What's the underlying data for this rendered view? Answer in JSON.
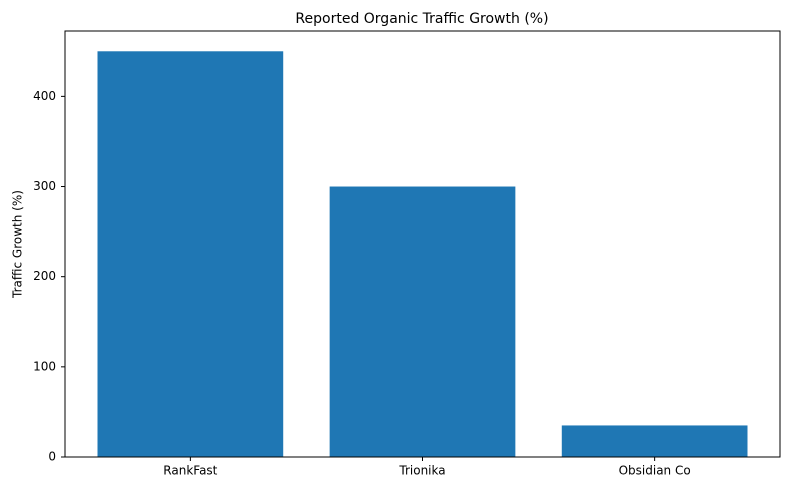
{
  "chart_data": {
    "type": "bar",
    "title": "Reported Organic Traffic Growth (%)",
    "y_label": "Traffic Growth (%)",
    "categories": [
      "RankFast",
      "Trionika",
      "Obsidian Co"
    ],
    "values": [
      450,
      300,
      35
    ],
    "color": "#1f77b4",
    "ylim": [
      0,
      472.5
    ],
    "yticks": [
      0,
      100,
      200,
      300,
      400
    ],
    "grid": false
  }
}
